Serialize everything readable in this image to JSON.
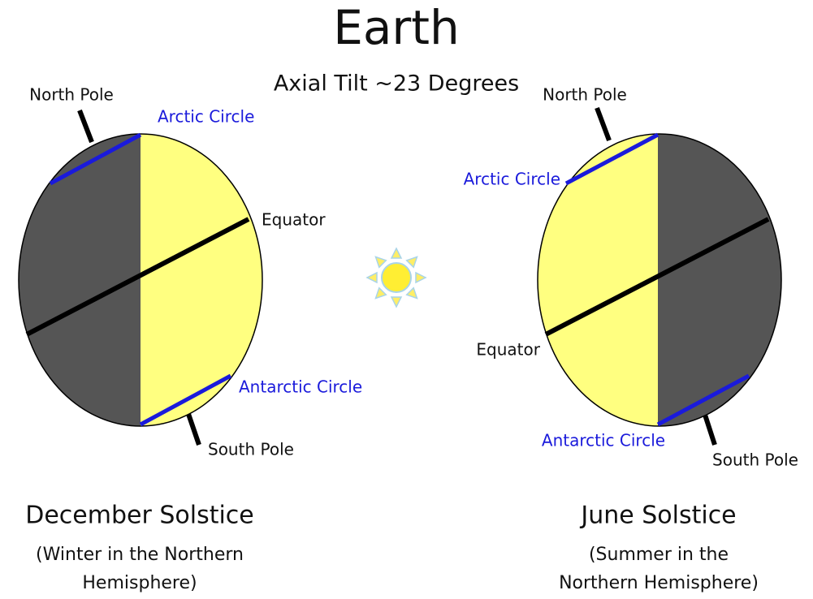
{
  "title": "Earth",
  "subtitle": "Axial Tilt ~23 Degrees",
  "left": {
    "north_pole": "North Pole",
    "arctic_circle": "Arctic Circle",
    "equator": "Equator",
    "antarctic_circle": "Antarctic Circle",
    "south_pole": "South Pole",
    "caption": "December Solstice",
    "note_lines": [
      "(Winter in the Northern",
      "Hemisphere)"
    ]
  },
  "right": {
    "north_pole": "North Pole",
    "arctic_circle": "Arctic Circle",
    "equator": "Equator",
    "antarctic_circle": "Antarctic Circle",
    "south_pole": "South Pole",
    "caption": "June Solstice",
    "note_lines": [
      "(Summer in the",
      "Northern Hemisphere)"
    ]
  }
}
